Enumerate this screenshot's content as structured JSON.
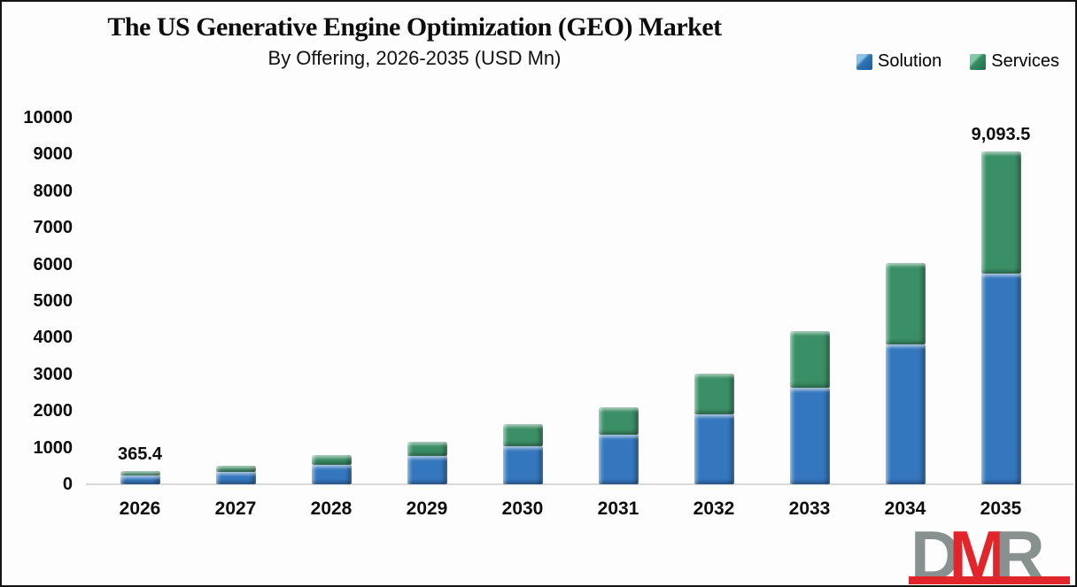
{
  "header": {
    "title": "The US Generative Engine Optimization (GEO) Market",
    "subtitle": "By Offering, 2026-2035 (USD Mn)"
  },
  "legend": {
    "items": [
      {
        "label": "Solution",
        "light": "#8FC1E9",
        "main": "#2E74B5",
        "dark": "#1F5C99"
      },
      {
        "label": "Services",
        "light": "#83C7A4",
        "main": "#348C64",
        "dark": "#246B4A"
      }
    ]
  },
  "chart_data": {
    "type": "bar",
    "stacked": true,
    "title": "The US Generative Engine Optimization (GEO) Market",
    "subtitle": "By Offering, 2026-2035 (USD Mn)",
    "unit": "USD Mn",
    "categories": [
      "2026",
      "2027",
      "2028",
      "2029",
      "2030",
      "2031",
      "2032",
      "2033",
      "2034",
      "2035"
    ],
    "series": [
      {
        "name": "Solution",
        "color_light": "#6FA7DB",
        "color": "#3577BE",
        "color_dark": "#255C96",
        "values": [
          240,
          340,
          530,
          765,
          1045,
          1345,
          1920,
          2640,
          3820,
          5750
        ]
      },
      {
        "name": "Services",
        "color_light": "#79C0A0",
        "color": "#3B8F66",
        "color_dark": "#2B6B4C",
        "values": [
          125.4,
          180,
          270,
          405,
          605,
          765,
          1090,
          1540,
          2220,
          3343.5
        ]
      }
    ],
    "totals": [
      365.4,
      520,
      800,
      1170,
      1650,
      2110,
      3010,
      4180,
      6040,
      9093.5
    ],
    "bar_labels": [
      {
        "index": 0,
        "text": "365.4"
      },
      {
        "index": 9,
        "text": "9,093.5"
      }
    ],
    "ylabel": "",
    "xlabel": "",
    "ylim": [
      0,
      10000
    ],
    "ytick_step": 1000,
    "yticks": [
      0,
      1000,
      2000,
      3000,
      4000,
      5000,
      6000,
      7000,
      8000,
      9000,
      10000
    ],
    "grid": false,
    "legend_position": "top-right",
    "axis_line_color": "#d9d9d9"
  },
  "logo": {
    "letters": [
      {
        "char": "D",
        "color": "#899090"
      },
      {
        "char": "M",
        "color": "#E2242B"
      },
      {
        "char": "R",
        "color": "#899090"
      }
    ],
    "bar_color": "#E2242B"
  }
}
